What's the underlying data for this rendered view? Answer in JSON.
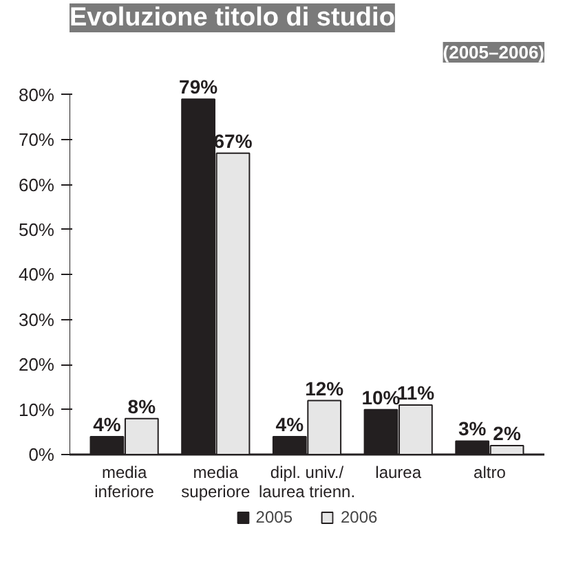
{
  "chart_data": {
    "type": "bar",
    "title": "Evoluzione titolo di studio",
    "subtitle": "(2005–2006)",
    "categories": [
      "media\ninferiore",
      "media\nsuperiore",
      "dipl. univ./\nlaurea trienn.",
      "laurea",
      "altro"
    ],
    "series": [
      {
        "name": "2005",
        "color": "#231f20",
        "values": [
          4,
          79,
          4,
          10,
          3
        ],
        "value_labels": [
          "4%",
          "79%",
          "4%",
          "10%",
          "3%"
        ]
      },
      {
        "name": "2006",
        "color": "#e6e6e6",
        "values": [
          8,
          67,
          12,
          11,
          2
        ],
        "value_labels": [
          "8%",
          "67%",
          "12%",
          "11%",
          "2%"
        ]
      }
    ],
    "ylim": [
      0,
      80
    ],
    "yticks": [
      {
        "value": 0,
        "label": "0%"
      },
      {
        "value": 10,
        "label": "10%"
      },
      {
        "value": 20,
        "label": "20%"
      },
      {
        "value": 30,
        "label": "30%"
      },
      {
        "value": 40,
        "label": "40%"
      },
      {
        "value": 50,
        "label": "50%"
      },
      {
        "value": 60,
        "label": "60%"
      },
      {
        "value": 70,
        "label": "70%"
      },
      {
        "value": 80,
        "label": "80%"
      }
    ],
    "grid": false,
    "legend": "bottom"
  }
}
